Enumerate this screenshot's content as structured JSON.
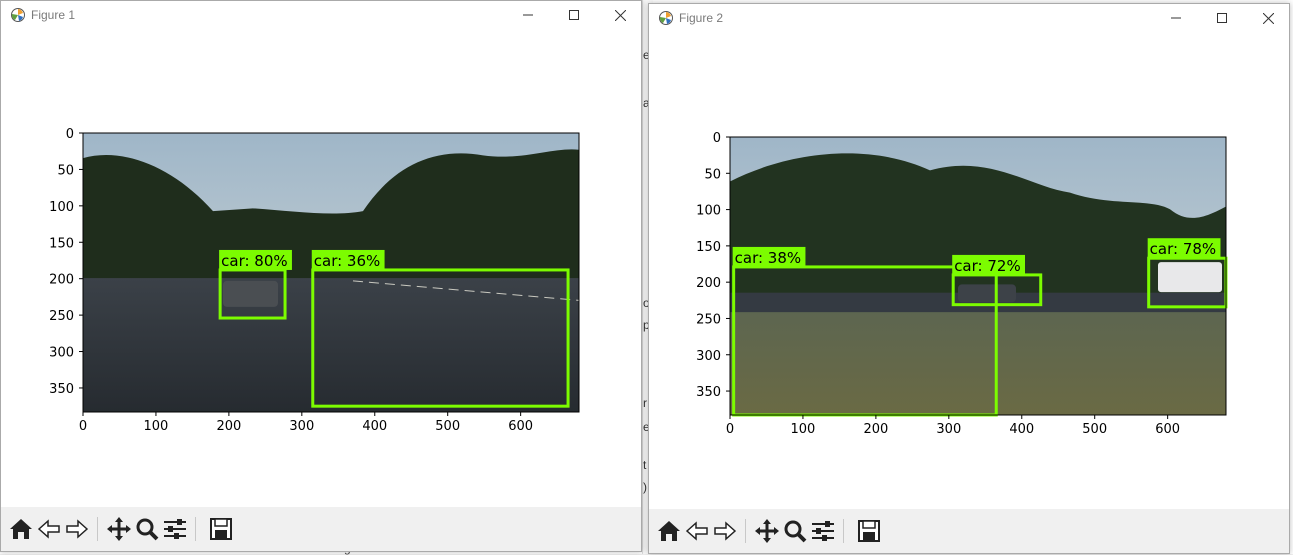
{
  "background": {
    "fragments": [
      "e.",
      "a",
      "o",
      "p",
      "r",
      "e",
      "t",
      ")"
    ],
    "bottom_text": "knowledge"
  },
  "figures": [
    {
      "title": "Figure 1",
      "image_width": 680,
      "image_height": 383,
      "x_ticks": [
        0,
        100,
        200,
        300,
        400,
        500,
        600
      ],
      "y_ticks": [
        0,
        50,
        100,
        150,
        200,
        250,
        300,
        350
      ],
      "detections": [
        {
          "label": "car: 80%",
          "x1": 188,
          "y1": 188,
          "x2": 277,
          "y2": 254
        },
        {
          "label": "car: 36%",
          "x1": 315,
          "y1": 188,
          "x2": 665,
          "y2": 375
        }
      ]
    },
    {
      "title": "Figure 2",
      "image_width": 680,
      "image_height": 383,
      "x_ticks": [
        0,
        100,
        200,
        300,
        400,
        500,
        600
      ],
      "y_ticks": [
        0,
        50,
        100,
        150,
        200,
        250,
        300,
        350
      ],
      "detections": [
        {
          "label": "car: 38%",
          "x1": 5,
          "y1": 179,
          "x2": 365,
          "y2": 383
        },
        {
          "label": "car: 72%",
          "x1": 306,
          "y1": 190,
          "x2": 426,
          "y2": 231
        },
        {
          "label": "car: 78%",
          "x1": 574,
          "y1": 167,
          "x2": 680,
          "y2": 234
        }
      ]
    }
  ],
  "toolbar": {
    "home_icon": "home-icon",
    "back_icon": "back-arrow-icon",
    "forward_icon": "forward-arrow-icon",
    "pan_icon": "pan-move-icon",
    "zoom_icon": "zoom-magnifier-icon",
    "configure_icon": "configure-subplots-icon",
    "save_icon": "save-disk-icon"
  },
  "colors": {
    "box": "#7cfc00",
    "label_bg": "#7cfc00"
  }
}
